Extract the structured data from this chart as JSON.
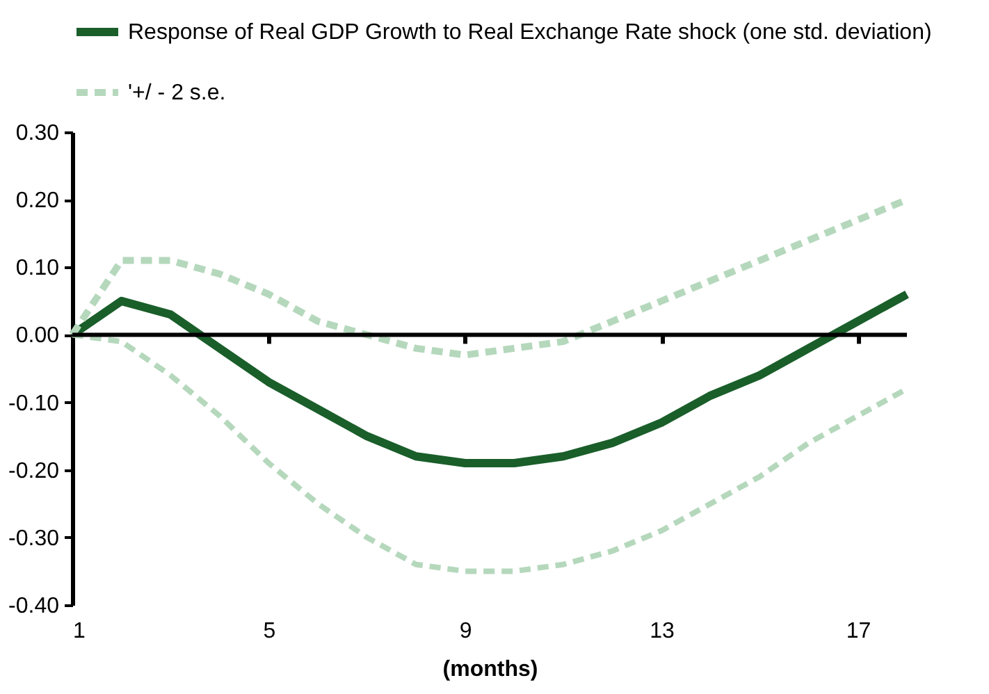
{
  "chart_data": {
    "type": "line",
    "xlabel": "(months)",
    "x": [
      1,
      2,
      3,
      4,
      5,
      6,
      7,
      8,
      9,
      10,
      11,
      12,
      13,
      14,
      15,
      16,
      17,
      18
    ],
    "xlim": [
      1,
      18
    ],
    "xticks": [
      1,
      5,
      9,
      13,
      17
    ],
    "ylim": [
      -0.4,
      0.3
    ],
    "yticks": [
      {
        "value": -0.4,
        "label": "-0.40"
      },
      {
        "value": -0.3,
        "label": "-0.30"
      },
      {
        "value": -0.2,
        "label": "-0.20"
      },
      {
        "value": -0.1,
        "label": "-0.10"
      },
      {
        "value": 0,
        "label": "0.00"
      },
      {
        "value": 0.1,
        "label": "0.10"
      },
      {
        "value": 0.2,
        "label": "0.20"
      },
      {
        "value": 0.3,
        "label": "0.30"
      }
    ],
    "grid": false,
    "ref_lines": [
      {
        "axis": "y",
        "value": 0,
        "color": "#000000"
      }
    ],
    "legend": "top",
    "marker": "none",
    "series": [
      {
        "name": "Response of Real GDP Growth to Real Exchange Rate shock (one std. deviation)",
        "color": "#1a5e2a",
        "line_style": "solid",
        "values": [
          0.0,
          0.05,
          0.03,
          -0.02,
          -0.07,
          -0.11,
          -0.15,
          -0.18,
          -0.19,
          -0.19,
          -0.18,
          -0.16,
          -0.13,
          -0.09,
          -0.06,
          -0.02,
          0.02,
          0.06
        ]
      },
      {
        "name": "'+/ - 2 s.e.",
        "color": "#b5d8bc",
        "line_style": "dashed",
        "values": [
          0.0,
          0.11,
          0.11,
          0.09,
          0.06,
          0.02,
          0.0,
          -0.02,
          -0.03,
          -0.02,
          -0.01,
          0.02,
          0.05,
          0.08,
          0.11,
          0.14,
          0.17,
          0.2
        ]
      },
      {
        "color": "#b5d8bc",
        "line_style": "dashed",
        "values": [
          0.0,
          -0.01,
          -0.06,
          -0.12,
          -0.19,
          -0.25,
          -0.3,
          -0.34,
          -0.35,
          -0.35,
          -0.34,
          -0.32,
          -0.29,
          -0.25,
          -0.21,
          -0.16,
          -0.12,
          -0.08
        ]
      }
    ]
  }
}
